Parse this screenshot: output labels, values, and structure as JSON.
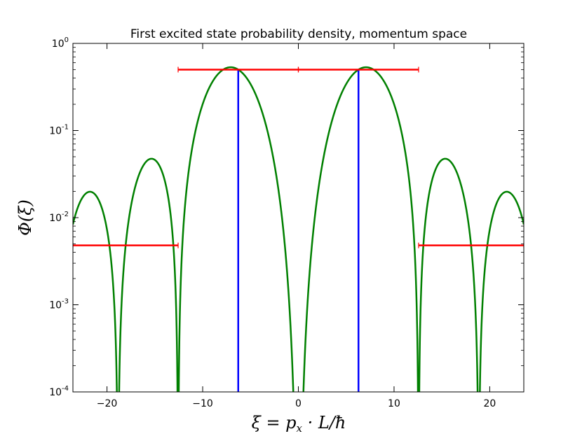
{
  "chart_data": {
    "type": "line",
    "title": "First excited state probability density, momentum space",
    "xlabel": "ξ = p_x · L/ħ",
    "ylabel": "Φ(ξ)",
    "xlim": [
      -23.56,
      23.56
    ],
    "ylim": [
      0.0001,
      1
    ],
    "yscale": "log",
    "xticks": [
      -20,
      -10,
      0,
      10,
      20
    ],
    "xtick_labels": [
      "−20",
      "−10",
      "0",
      "10",
      "20"
    ],
    "yticks": [
      {
        "value": 1,
        "base": "10",
        "exp": "0"
      },
      {
        "value": 0.1,
        "base": "10",
        "exp": "-1"
      },
      {
        "value": 0.01,
        "base": "10",
        "exp": "-2"
      },
      {
        "value": 0.001,
        "base": "10",
        "exp": "-3"
      },
      {
        "value": 0.0001,
        "base": "10",
        "exp": "-4"
      }
    ],
    "grid": false,
    "series": [
      {
        "kind": "curve",
        "color": "#008000",
        "function": "first_excited_momentum_density",
        "samples": 1800
      },
      {
        "kind": "vlines",
        "color": "#0000ff",
        "x": [
          -6.2832,
          6.2832
        ],
        "y_top": 0.5
      },
      {
        "kind": "hsegments",
        "color": "#ff0000",
        "segments": [
          {
            "x": [
              -23.56,
              -12.566
            ],
            "y": 0.0048
          },
          {
            "x": [
              -12.566,
              0
            ],
            "y": 0.5
          },
          {
            "x": [
              0,
              12.566
            ],
            "y": 0.5
          },
          {
            "x": [
              12.566,
              23.56
            ],
            "y": 0.0048
          }
        ]
      }
    ]
  }
}
